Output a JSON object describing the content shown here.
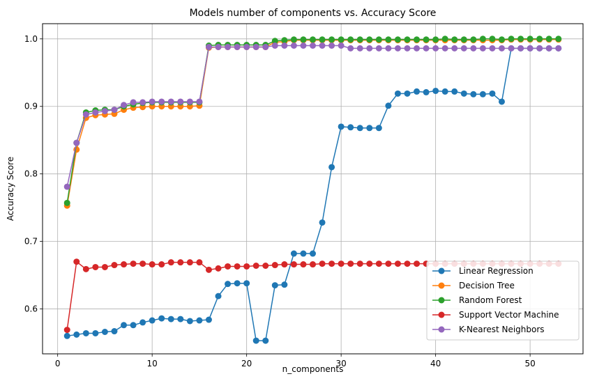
{
  "chart_data": {
    "type": "line",
    "title": "Models number of components vs. Accuracy Score",
    "xlabel": "n_components",
    "ylabel": "Accuracy Score",
    "xlim": [
      -1.6,
      55.6
    ],
    "ylim": [
      0.5335,
      1.0225
    ],
    "xticks": [
      0,
      10,
      20,
      30,
      40,
      50
    ],
    "yticks": [
      0.6,
      0.7,
      0.8,
      0.9,
      1.0
    ],
    "xtick_labels": [
      "0",
      "10",
      "20",
      "30",
      "40",
      "50"
    ],
    "ytick_labels": [
      "0.6",
      "0.7",
      "0.8",
      "0.9",
      "1.0"
    ],
    "grid": true,
    "legend_position": "bottom-right",
    "x": [
      1,
      2,
      3,
      4,
      5,
      6,
      7,
      8,
      9,
      10,
      11,
      12,
      13,
      14,
      15,
      16,
      17,
      18,
      19,
      20,
      21,
      22,
      23,
      24,
      25,
      26,
      27,
      28,
      29,
      30,
      31,
      32,
      33,
      34,
      35,
      36,
      37,
      38,
      39,
      40,
      41,
      42,
      43,
      44,
      45,
      46,
      47,
      48,
      49,
      50,
      51,
      52,
      53
    ],
    "series": [
      {
        "name": "Linear Regression",
        "color": "#1f77b4",
        "values": [
          0.56,
          0.562,
          0.564,
          0.564,
          0.566,
          0.567,
          0.576,
          0.576,
          0.58,
          0.583,
          0.586,
          0.585,
          0.585,
          0.582,
          0.583,
          0.584,
          0.619,
          0.637,
          0.638,
          0.638,
          0.553,
          0.553,
          0.635,
          0.636,
          0.682,
          0.682,
          0.682,
          0.728,
          0.81,
          0.87,
          0.869,
          0.868,
          0.868,
          0.868,
          0.901,
          0.919,
          0.919,
          0.922,
          0.921,
          0.923,
          0.922,
          0.922,
          0.919,
          0.918,
          0.918,
          0.919,
          0.907,
          0.986,
          0.986,
          0.986,
          0.986,
          0.986,
          0.986
        ]
      },
      {
        "name": "Decision Tree",
        "color": "#ff7f0e",
        "values": [
          0.753,
          0.836,
          0.883,
          0.887,
          0.888,
          0.889,
          0.895,
          0.898,
          0.899,
          0.9,
          0.9,
          0.9,
          0.9,
          0.9,
          0.901,
          0.987,
          0.988,
          0.988,
          0.988,
          0.988,
          0.988,
          0.988,
          0.995,
          0.996,
          0.998,
          0.998,
          0.998,
          0.998,
          0.998,
          0.998,
          0.998,
          0.998,
          0.998,
          0.998,
          0.998,
          0.998,
          0.998,
          0.998,
          0.998,
          0.998,
          0.998,
          0.998,
          0.998,
          0.998,
          0.998,
          0.998,
          0.998,
          0.999,
          0.999,
          0.999,
          0.999,
          0.999,
          0.999
        ]
      },
      {
        "name": "Random Forest",
        "color": "#2ca02c",
        "values": [
          0.757,
          0.846,
          0.891,
          0.894,
          0.895,
          0.895,
          0.9,
          0.903,
          0.905,
          0.906,
          0.906,
          0.906,
          0.906,
          0.906,
          0.906,
          0.99,
          0.991,
          0.991,
          0.991,
          0.991,
          0.991,
          0.991,
          0.997,
          0.998,
          0.999,
          0.999,
          0.999,
          0.999,
          0.999,
          0.999,
          0.999,
          0.999,
          0.999,
          0.999,
          0.999,
          0.999,
          0.999,
          0.999,
          0.999,
          0.999,
          1.0,
          0.999,
          0.999,
          0.999,
          1.0,
          1.0,
          0.999,
          1.0,
          1.0,
          1.0,
          1.0,
          1.0,
          1.0
        ]
      },
      {
        "name": "Support Vector Machine",
        "color": "#d62728",
        "values": [
          0.569,
          0.67,
          0.659,
          0.662,
          0.662,
          0.665,
          0.666,
          0.667,
          0.667,
          0.666,
          0.666,
          0.669,
          0.669,
          0.669,
          0.669,
          0.658,
          0.66,
          0.663,
          0.663,
          0.663,
          0.664,
          0.664,
          0.665,
          0.666,
          0.666,
          0.666,
          0.666,
          0.667,
          0.667,
          0.667,
          0.667,
          0.667,
          0.667,
          0.667,
          0.667,
          0.667,
          0.667,
          0.667,
          0.667,
          0.667,
          0.667,
          0.667,
          0.667,
          0.667,
          0.667,
          0.667,
          0.667,
          0.667,
          0.667,
          0.667,
          0.667,
          0.667,
          0.667
        ]
      },
      {
        "name": "K-Nearest Neighbors",
        "color": "#9467bd",
        "values": [
          0.781,
          0.846,
          0.888,
          0.891,
          0.893,
          0.895,
          0.902,
          0.906,
          0.906,
          0.907,
          0.907,
          0.907,
          0.907,
          0.907,
          0.907,
          0.988,
          0.988,
          0.988,
          0.988,
          0.988,
          0.988,
          0.988,
          0.99,
          0.99,
          0.99,
          0.99,
          0.99,
          0.99,
          0.99,
          0.99,
          0.986,
          0.986,
          0.986,
          0.986,
          0.986,
          0.986,
          0.986,
          0.986,
          0.986,
          0.986,
          0.986,
          0.986,
          0.986,
          0.986,
          0.986,
          0.986,
          0.986,
          0.986,
          0.986,
          0.986,
          0.986,
          0.986,
          0.986
        ]
      }
    ]
  }
}
